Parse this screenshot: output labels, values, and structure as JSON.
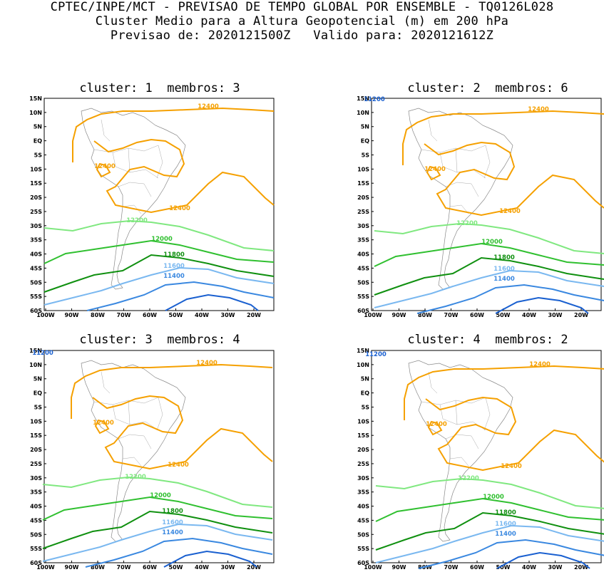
{
  "header": {
    "line1": "CPTEC/INPE/MCT - PREVISAO DE TEMPO GLOBAL POR ENSEMBLE - TQ0126L028",
    "line2": "Cluster Medio para a Altura Geopotencial (m) em 200 hPa",
    "line3": "Previsao de: 2020121500Z   Valido para: 2020121612Z"
  },
  "axes": {
    "lat_labels": [
      "15N",
      "10N",
      "5N",
      "EQ",
      "5S",
      "10S",
      "15S",
      "20S",
      "25S",
      "30S",
      "35S",
      "40S",
      "45S",
      "50S",
      "55S",
      "60S"
    ],
    "lon_labels": [
      "100W",
      "90W",
      "80W",
      "70W",
      "60W",
      "50W",
      "40W",
      "30W",
      "20W"
    ]
  },
  "contour_levels": [
    {
      "label": "12400",
      "color": "#f5a000"
    },
    {
      "label": "12200",
      "color": "#80e880"
    },
    {
      "label": "12000",
      "color": "#30c030"
    },
    {
      "label": "11800",
      "color": "#109010"
    },
    {
      "label": "11600",
      "color": "#7ab8f0"
    },
    {
      "label": "11400",
      "color": "#3a88e0"
    },
    {
      "label": "11200",
      "color": "#1a60d0"
    }
  ],
  "panels": [
    {
      "title": "cluster: 1  membros: 3"
    },
    {
      "title": "cluster: 2  membros: 6"
    },
    {
      "title": "cluster: 3  membros: 4"
    },
    {
      "title": "cluster: 4  membros: 2"
    }
  ]
}
